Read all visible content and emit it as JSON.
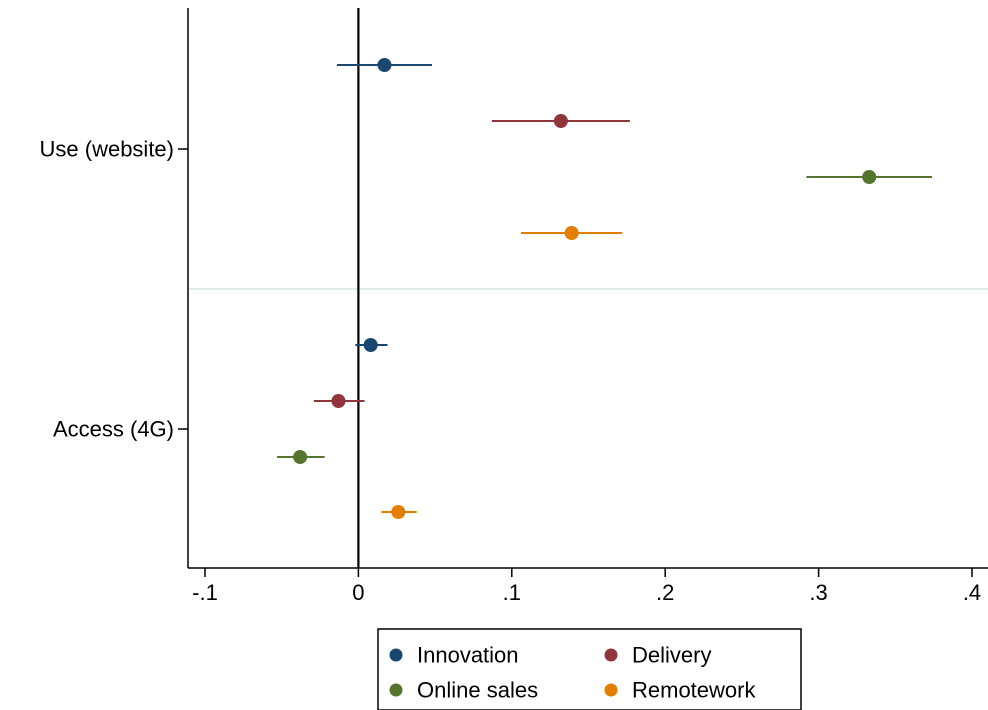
{
  "chart_data": {
    "type": "scatter",
    "subtype": "coefficient-plot-with-confidence-intervals",
    "title": "",
    "xlabel": "",
    "ylabel": "",
    "xlim": [
      -0.11,
      0.41
    ],
    "x_ticks": [
      -0.1,
      0,
      0.1,
      0.2,
      0.3,
      0.4
    ],
    "x_tick_labels": [
      "-.1",
      "0",
      ".1",
      ".2",
      ".3",
      ".4"
    ],
    "zero_line": 0,
    "groups": [
      "Use (website)",
      "Access (4G)"
    ],
    "series": [
      {
        "name": "Innovation",
        "color": "#1a476f",
        "points": [
          {
            "group": "Use (website)",
            "estimate": 0.017,
            "ci": [
              -0.014,
              0.048
            ]
          },
          {
            "group": "Access (4G)",
            "estimate": 0.008,
            "ci": [
              -0.002,
              0.019
            ]
          }
        ]
      },
      {
        "name": "Delivery",
        "color": "#90353b",
        "points": [
          {
            "group": "Use (website)",
            "estimate": 0.132,
            "ci": [
              0.087,
              0.177
            ]
          },
          {
            "group": "Access (4G)",
            "estimate": -0.013,
            "ci": [
              -0.029,
              0.004
            ]
          }
        ]
      },
      {
        "name": "Online sales",
        "color": "#55752f",
        "points": [
          {
            "group": "Use (website)",
            "estimate": 0.333,
            "ci": [
              0.292,
              0.374
            ]
          },
          {
            "group": "Access (4G)",
            "estimate": -0.038,
            "ci": [
              -0.053,
              -0.022
            ]
          }
        ]
      },
      {
        "name": "Remotework",
        "color": "#e37e00",
        "points": [
          {
            "group": "Use (website)",
            "estimate": 0.139,
            "ci": [
              0.106,
              0.172
            ]
          },
          {
            "group": "Access (4G)",
            "estimate": 0.026,
            "ci": [
              0.015,
              0.038
            ]
          }
        ]
      }
    ],
    "grid": false,
    "group_separator": true,
    "legend": {
      "position": "bottom",
      "columns": 2
    }
  }
}
